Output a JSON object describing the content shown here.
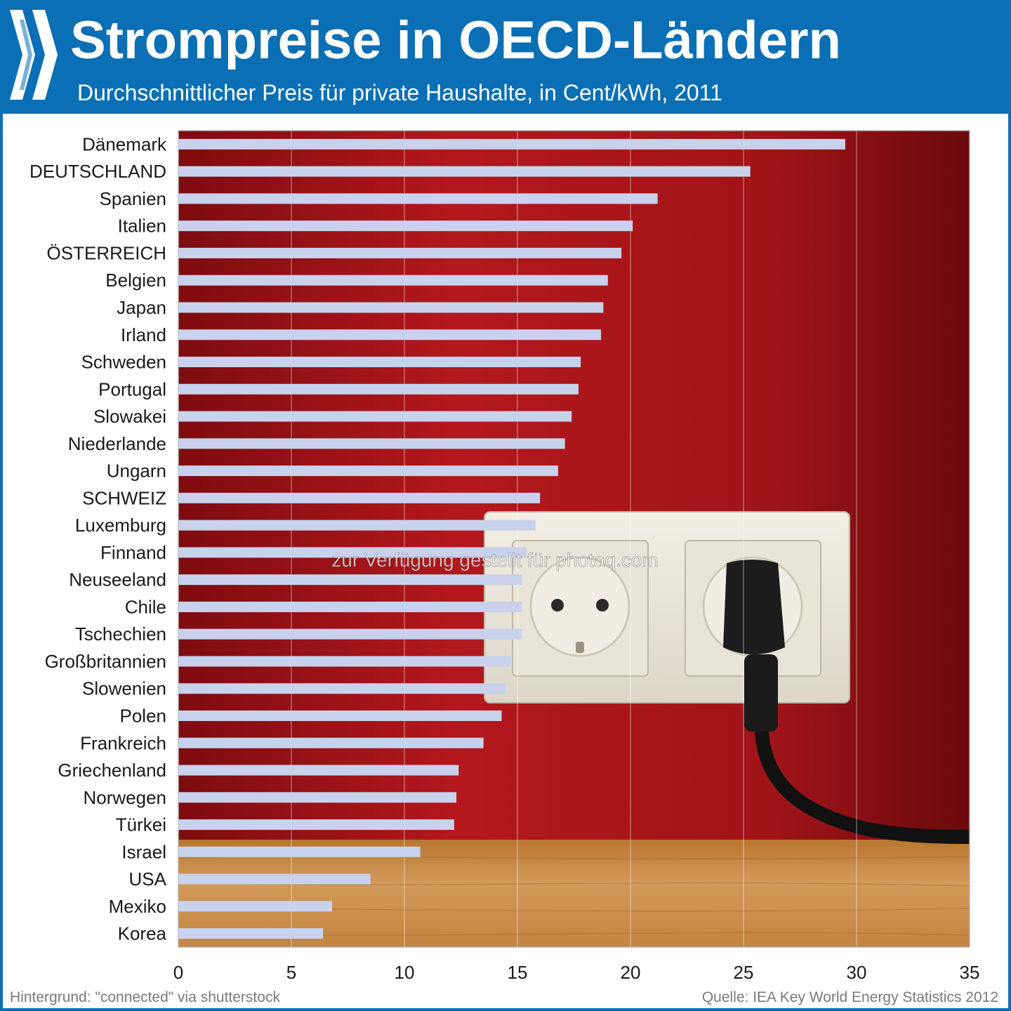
{
  "header": {
    "title": "Strompreise in OECD-Ländern",
    "subtitle": "Durchschnittlicher Preis für private Haushalte, in Cent/kWh, 2011",
    "logo_icon": "oecd-chevrons-icon"
  },
  "colors": {
    "header_bg": "#0a6fb5",
    "bar_fill": "#c8d2ec",
    "wall": "#a8161a",
    "floor": "#c98a48"
  },
  "chart_data": {
    "type": "bar",
    "orientation": "horizontal",
    "title": "Strompreise in OECD-Ländern",
    "subtitle": "Durchschnittlicher Preis für private Haushalte, in Cent/kWh, 2011",
    "xlabel": "",
    "ylabel": "",
    "xlim": [
      0,
      35
    ],
    "xticks": [
      0,
      5,
      10,
      15,
      20,
      25,
      30,
      35
    ],
    "grid": "vertical",
    "categories": [
      "Dänemark",
      "DEUTSCHLAND",
      "Spanien",
      "Italien",
      "ÖSTERREICH",
      "Belgien",
      "Japan",
      "Irland",
      "Schweden",
      "Portugal",
      "Slowakei",
      "Niederlande",
      "Ungarn",
      "SCHWEIZ",
      "Luxemburg",
      "Finnand",
      "Neuseeland",
      "Chile",
      "Tschechien",
      "Großbritannien",
      "Slowenien",
      "Polen",
      "Frankreich",
      "Griechenland",
      "Norwegen",
      "Türkei",
      "Israel",
      "USA",
      "Mexiko",
      "Korea"
    ],
    "values": [
      29.5,
      25.3,
      21.2,
      20.1,
      19.6,
      19.0,
      18.8,
      18.7,
      17.8,
      17.7,
      17.4,
      17.1,
      16.8,
      16.0,
      15.8,
      15.4,
      15.2,
      15.2,
      15.2,
      14.7,
      14.5,
      14.3,
      13.5,
      12.4,
      12.3,
      12.2,
      10.7,
      8.5,
      6.8,
      6.4
    ]
  },
  "footer": {
    "left": "Hintergrund: \"connected\" via shutterstock",
    "right": "Quelle: IEA Key World Energy Statistics 2012"
  },
  "watermark": "zur Verfügung gestellt für photaq.com"
}
